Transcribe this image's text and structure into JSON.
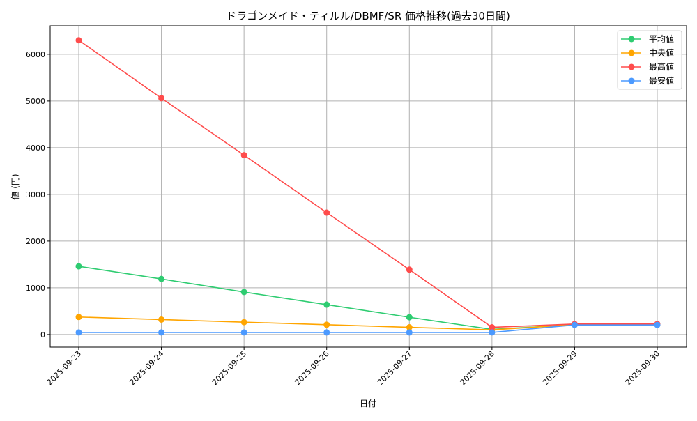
{
  "chart_data": {
    "type": "line",
    "title": "ドラゴンメイド・ティルル/DBMF/SR 価格推移(過去30日間)",
    "xlabel": "日付",
    "ylabel": "値 (円)",
    "categories": [
      "2025-09-23",
      "2025-09-24",
      "2025-09-25",
      "2025-09-26",
      "2025-09-27",
      "2025-09-28",
      "2025-09-29",
      "2025-09-30"
    ],
    "ylim": [
      -270,
      6610
    ],
    "yticks": [
      0,
      1000,
      2000,
      3000,
      4000,
      5000,
      6000
    ],
    "grid": true,
    "legend_position": "top-right",
    "series": [
      {
        "name": "平均値",
        "color": "#2ecc71",
        "values": [
          1460,
          1190,
          910,
          640,
          370,
          110,
          210,
          210
        ]
      },
      {
        "name": "中央値",
        "color": "#ffa500",
        "values": [
          375,
          320,
          265,
          210,
          155,
          100,
          210,
          210
        ]
      },
      {
        "name": "最高値",
        "color": "#ff4c4c",
        "values": [
          6300,
          5060,
          3840,
          2610,
          1390,
          155,
          225,
          225
        ]
      },
      {
        "name": "最安値",
        "color": "#4c9aff",
        "values": [
          45,
          45,
          45,
          45,
          45,
          45,
          205,
          205
        ]
      }
    ]
  }
}
